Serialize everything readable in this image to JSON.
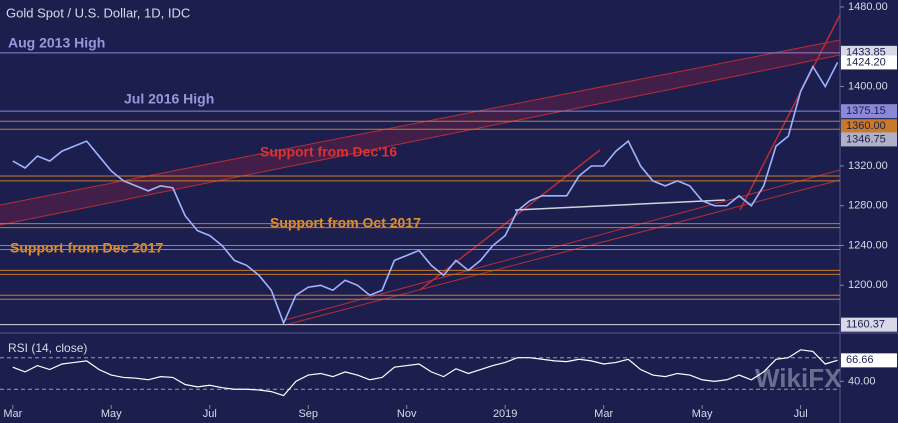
{
  "chart_data": {
    "type": "line",
    "title": "Gold Spot / U.S. Dollar, 1D, IDC",
    "watermark": "WikiFX",
    "color": "#9fb4ff",
    "x": [
      0,
      0.25,
      0.5,
      0.75,
      1,
      1.25,
      1.5,
      1.75,
      2,
      2.25,
      2.5,
      2.75,
      3,
      3.25,
      3.5,
      3.75,
      4,
      4.25,
      4.5,
      4.75,
      5,
      5.25,
      5.5,
      5.75,
      6,
      6.25,
      6.5,
      6.75,
      7,
      7.25,
      7.5,
      7.75,
      8,
      8.25,
      8.5,
      8.75,
      9,
      9.25,
      9.5,
      9.75,
      10,
      10.25,
      10.5,
      10.75,
      11,
      11.25,
      11.5,
      11.75,
      12,
      12.25,
      12.5,
      12.75,
      13,
      13.25,
      13.5,
      13.75,
      14,
      14.25,
      14.5,
      14.75,
      15,
      15.25,
      15.5,
      15.75,
      16,
      16.25,
      16.5,
      16.75
    ],
    "values": [
      1325,
      1318,
      1330,
      1325,
      1335,
      1340,
      1345,
      1330,
      1315,
      1305,
      1300,
      1295,
      1300,
      1298,
      1270,
      1255,
      1250,
      1240,
      1225,
      1220,
      1210,
      1195,
      1162,
      1190,
      1198,
      1200,
      1195,
      1205,
      1200,
      1190,
      1195,
      1225,
      1230,
      1235,
      1220,
      1210,
      1225,
      1215,
      1225,
      1240,
      1250,
      1275,
      1285,
      1290,
      1290,
      1290,
      1310,
      1320,
      1320,
      1335,
      1345,
      1320,
      1305,
      1300,
      1305,
      1300,
      1285,
      1280,
      1280,
      1290,
      1280,
      1300,
      1340,
      1350,
      1395,
      1420,
      1400,
      1424.2
    ],
    "xlim": [
      -0.26,
      16.8
    ],
    "xticks": [
      {
        "value": 0,
        "label": "Mar"
      },
      {
        "value": 2,
        "label": "May"
      },
      {
        "value": 4,
        "label": "Jul"
      },
      {
        "value": 6,
        "label": "Sep"
      },
      {
        "value": 8,
        "label": "Nov"
      },
      {
        "value": 10,
        "label": "2019"
      },
      {
        "value": 12,
        "label": "Mar"
      },
      {
        "value": 14,
        "label": "May"
      },
      {
        "value": 16,
        "label": "Jul"
      }
    ],
    "ylim": [
      1155,
      1485
    ],
    "yticks": [
      {
        "value": 1480,
        "label": "1480.00"
      },
      {
        "value": 1400,
        "label": "1400.00"
      },
      {
        "value": 1320,
        "label": "1320.00"
      },
      {
        "value": 1280,
        "label": "1280.00"
      },
      {
        "value": 1240,
        "label": "1240.00"
      },
      {
        "value": 1200,
        "label": "1200.00"
      }
    ],
    "price_markers": [
      {
        "value": 1433.85,
        "label": "1433.85",
        "color": "#d8d8e8"
      },
      {
        "value": 1424.2,
        "label": "1424.20",
        "color": "#ffffff"
      },
      {
        "value": 1375.15,
        "label": "1375.15",
        "color": "#8c88d8"
      },
      {
        "value": 1360,
        "label": "1360.00",
        "color": "#c87a2a"
      },
      {
        "value": 1346.75,
        "label": "1346.75",
        "color": "#b0b0c8"
      },
      {
        "value": 1160.37,
        "label": "1160.37",
        "color": "#d8d8e8"
      }
    ],
    "levels": [
      {
        "value": 1433.85,
        "color": "#8c88d8"
      },
      {
        "value": 1375.15,
        "color": "#8c88d8"
      },
      {
        "value": 1365,
        "color": "#c87a2a"
      },
      {
        "value": 1357,
        "color": "#c87a2a"
      },
      {
        "value": 1310,
        "color": "#c87a2a"
      },
      {
        "value": 1305,
        "color": "#c87a2a"
      },
      {
        "value": 1262,
        "color": "#c87a2a"
      },
      {
        "value": 1258,
        "color": "#c87a2a"
      },
      {
        "value": 1240,
        "color": "#c87a2a"
      },
      {
        "value": 1236,
        "color": "#c87a2a"
      },
      {
        "value": 1215,
        "color": "#c87a2a"
      },
      {
        "value": 1211,
        "color": "#c87a2a"
      },
      {
        "value": 1190,
        "color": "#c87a2a"
      },
      {
        "value": 1186,
        "color": "#c87a2a"
      },
      {
        "value": 1160.37,
        "color": "#d8d8e8"
      }
    ],
    "annotations": [
      "Aug 2013 High",
      "Jul 2016 High",
      "Support from Dec'16",
      "Support from Oct 2017",
      "Support from Dec 2017"
    ],
    "rsi": {
      "label": "RSI (14, close)",
      "color": "#ffffff",
      "values": [
        58,
        52,
        60,
        55,
        62,
        64,
        66,
        55,
        48,
        45,
        44,
        42,
        46,
        45,
        36,
        33,
        35,
        32,
        30,
        30,
        29,
        27,
        22,
        40,
        48,
        50,
        46,
        52,
        48,
        42,
        45,
        58,
        60,
        62,
        52,
        46,
        56,
        50,
        55,
        60,
        64,
        70,
        70,
        68,
        66,
        65,
        68,
        66,
        62,
        64,
        68,
        55,
        48,
        46,
        50,
        48,
        42,
        40,
        42,
        48,
        42,
        52,
        68,
        70,
        80,
        78,
        62,
        66.66
      ],
      "ylim": [
        10,
        95
      ],
      "levels": [
        70,
        30
      ],
      "yticks": [
        {
          "value": 40,
          "label": "40.00"
        }
      ],
      "marker": {
        "value": 66.66,
        "label": "66.66"
      }
    }
  }
}
